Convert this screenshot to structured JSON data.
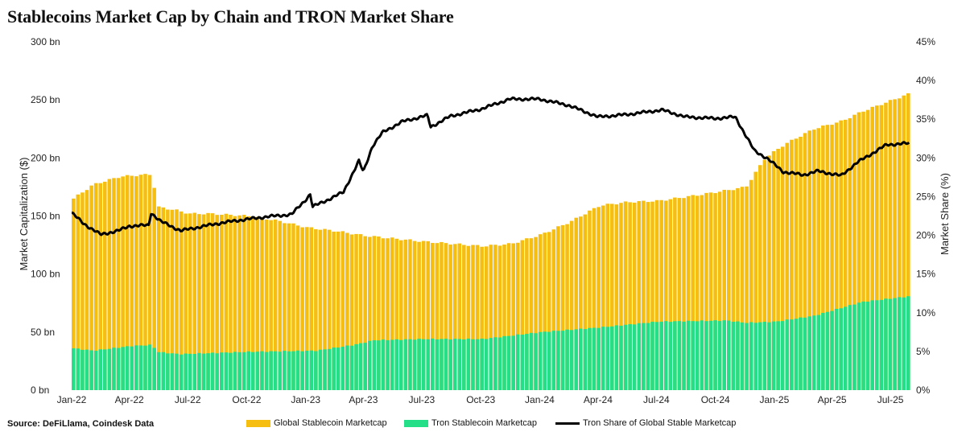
{
  "title": "Stablecoins Market Cap by Chain and TRON Market Share",
  "source": "Source: DeFiLlama, Coindesk Data",
  "colors": {
    "global": "#F5BE11",
    "tron": "#25DE88",
    "share": "#000000"
  },
  "chart_data": {
    "type": "bar",
    "stacked": "overlay",
    "x_range": [
      "2022-01-01",
      "2025-07-31"
    ],
    "x_ticks": [
      "Jan-22",
      "Apr-22",
      "Jul-22",
      "Oct-22",
      "Jan-23",
      "Apr-23",
      "Jul-23",
      "Oct-23",
      "Jan-24",
      "Apr-24",
      "Jul-24",
      "Oct-24",
      "Jan-25",
      "Apr-25",
      "Jul-25"
    ],
    "ylabel_left": "Market Capitalization ($)",
    "ylabel_right": "Market Share (%)",
    "y_left_ticks": [
      "0 bn",
      "50 bn",
      "100 bn",
      "150 bn",
      "200 bn",
      "250 bn",
      "300 bn"
    ],
    "y_left_range": [
      0,
      300
    ],
    "y_right_ticks": [
      "0%",
      "5%",
      "10%",
      "15%",
      "20%",
      "25%",
      "30%",
      "35%",
      "40%",
      "45%"
    ],
    "y_right_range": [
      0,
      45
    ],
    "series": [
      {
        "name": "Global Stablecoin Marketcap",
        "kind": "bar",
        "axis": "left",
        "points": [
          [
            "2022-01-01",
            165
          ],
          [
            "2022-02-01",
            177
          ],
          [
            "2022-03-15",
            184
          ],
          [
            "2022-05-05",
            186
          ],
          [
            "2022-05-10",
            158
          ],
          [
            "2022-06-10",
            155
          ],
          [
            "2022-07-01",
            152
          ],
          [
            "2022-08-01",
            152
          ],
          [
            "2022-10-01",
            150
          ],
          [
            "2022-11-15",
            146
          ],
          [
            "2023-01-01",
            140
          ],
          [
            "2023-02-15",
            137
          ],
          [
            "2023-04-01",
            133
          ],
          [
            "2023-07-01",
            128
          ],
          [
            "2023-10-01",
            124
          ],
          [
            "2023-11-15",
            126
          ],
          [
            "2024-01-01",
            134
          ],
          [
            "2024-02-15",
            145
          ],
          [
            "2024-04-01",
            159
          ],
          [
            "2024-05-15",
            162
          ],
          [
            "2024-07-01",
            163
          ],
          [
            "2024-09-01",
            168
          ],
          [
            "2024-10-15",
            172
          ],
          [
            "2024-11-15",
            175
          ],
          [
            "2024-12-15",
            200
          ],
          [
            "2025-01-15",
            212
          ],
          [
            "2025-03-01",
            225
          ],
          [
            "2025-04-15",
            232
          ],
          [
            "2025-05-15",
            240
          ],
          [
            "2025-07-31",
            256
          ]
        ]
      },
      {
        "name": "Tron Stablecoin Marketcap",
        "kind": "bar",
        "axis": "left",
        "points": [
          [
            "2022-01-01",
            36
          ],
          [
            "2022-02-01",
            34
          ],
          [
            "2022-04-01",
            38
          ],
          [
            "2022-05-05",
            39
          ],
          [
            "2022-05-10",
            33
          ],
          [
            "2022-06-15",
            31
          ],
          [
            "2022-10-01",
            33
          ],
          [
            "2023-01-15",
            34
          ],
          [
            "2023-03-15",
            39
          ],
          [
            "2023-04-15",
            43
          ],
          [
            "2023-07-01",
            44
          ],
          [
            "2023-10-01",
            44
          ],
          [
            "2024-01-01",
            50
          ],
          [
            "2024-04-01",
            54
          ],
          [
            "2024-07-01",
            59
          ],
          [
            "2024-10-15",
            60
          ],
          [
            "2024-11-15",
            58
          ],
          [
            "2025-01-01",
            59
          ],
          [
            "2025-03-01",
            64
          ],
          [
            "2025-05-15",
            76
          ],
          [
            "2025-07-31",
            81
          ]
        ]
      },
      {
        "name": "Tron Share of Global Stable Marketcap",
        "kind": "line",
        "axis": "right",
        "points": [
          [
            "2022-01-01",
            22.9
          ],
          [
            "2022-01-20",
            21.5
          ],
          [
            "2022-02-15",
            20.1
          ],
          [
            "2022-03-15",
            20.6
          ],
          [
            "2022-04-01",
            21.2
          ],
          [
            "2022-05-01",
            21.3
          ],
          [
            "2022-05-05",
            22.9
          ],
          [
            "2022-05-20",
            21.8
          ],
          [
            "2022-06-20",
            20.6
          ],
          [
            "2022-07-15",
            21.0
          ],
          [
            "2022-08-15",
            21.5
          ],
          [
            "2022-09-15",
            21.9
          ],
          [
            "2022-11-01",
            22.4
          ],
          [
            "2022-12-10",
            22.7
          ],
          [
            "2023-01-01",
            24.6
          ],
          [
            "2023-01-08",
            25.3
          ],
          [
            "2023-01-12",
            23.7
          ],
          [
            "2023-02-10",
            24.8
          ],
          [
            "2023-03-01",
            25.6
          ],
          [
            "2023-03-25",
            29.6
          ],
          [
            "2023-04-01",
            28.2
          ],
          [
            "2023-04-15",
            31.5
          ],
          [
            "2023-05-01",
            33.3
          ],
          [
            "2023-06-01",
            34.7
          ],
          [
            "2023-07-10",
            35.5
          ],
          [
            "2023-07-15",
            34.0
          ],
          [
            "2023-08-15",
            35.4
          ],
          [
            "2023-10-01",
            36.3
          ],
          [
            "2023-11-15",
            37.6
          ],
          [
            "2024-01-01",
            37.6
          ],
          [
            "2024-02-15",
            36.8
          ],
          [
            "2024-04-01",
            35.3
          ],
          [
            "2024-05-15",
            35.6
          ],
          [
            "2024-07-10",
            36.2
          ],
          [
            "2024-08-15",
            35.3
          ],
          [
            "2024-10-01",
            35.1
          ],
          [
            "2024-11-01",
            35.3
          ],
          [
            "2024-12-01",
            30.9
          ],
          [
            "2024-12-20",
            30.0
          ],
          [
            "2025-01-15",
            28.2
          ],
          [
            "2025-02-15",
            27.8
          ],
          [
            "2025-03-10",
            28.3
          ],
          [
            "2025-04-15",
            27.7
          ],
          [
            "2025-05-10",
            29.4
          ],
          [
            "2025-06-15",
            31.2
          ],
          [
            "2025-06-25",
            31.7
          ],
          [
            "2025-07-31",
            31.9
          ]
        ]
      }
    ]
  }
}
